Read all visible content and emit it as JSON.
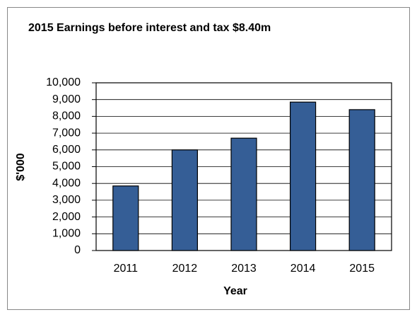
{
  "chart_data": {
    "type": "bar",
    "title": "2015 Earnings before interest and tax $8.40m",
    "x_label": "Year",
    "y_label": "$'000",
    "categories": [
      "2011",
      "2012",
      "2013",
      "2014",
      "2015"
    ],
    "values": [
      3850,
      6000,
      6700,
      8850,
      8400
    ],
    "color": "#355e96",
    "ylim": [
      0,
      10000
    ],
    "yticks": [
      0,
      {
        "value": 1000,
        "label": "1,000"
      },
      {
        "value": 2000,
        "label": "2,000"
      },
      {
        "value": 3000,
        "label": "3,000"
      },
      {
        "value": 4000,
        "label": "4,000"
      },
      {
        "value": 5000,
        "label": "5,000"
      },
      {
        "value": 6000,
        "label": "6,000"
      },
      {
        "value": 7000,
        "label": "7,000"
      },
      {
        "value": 8000,
        "label": "8,000"
      },
      {
        "value": 9000,
        "label": "9,000"
      },
      {
        "value": 10000,
        "label": "10,000"
      }
    ],
    "grid": true
  }
}
